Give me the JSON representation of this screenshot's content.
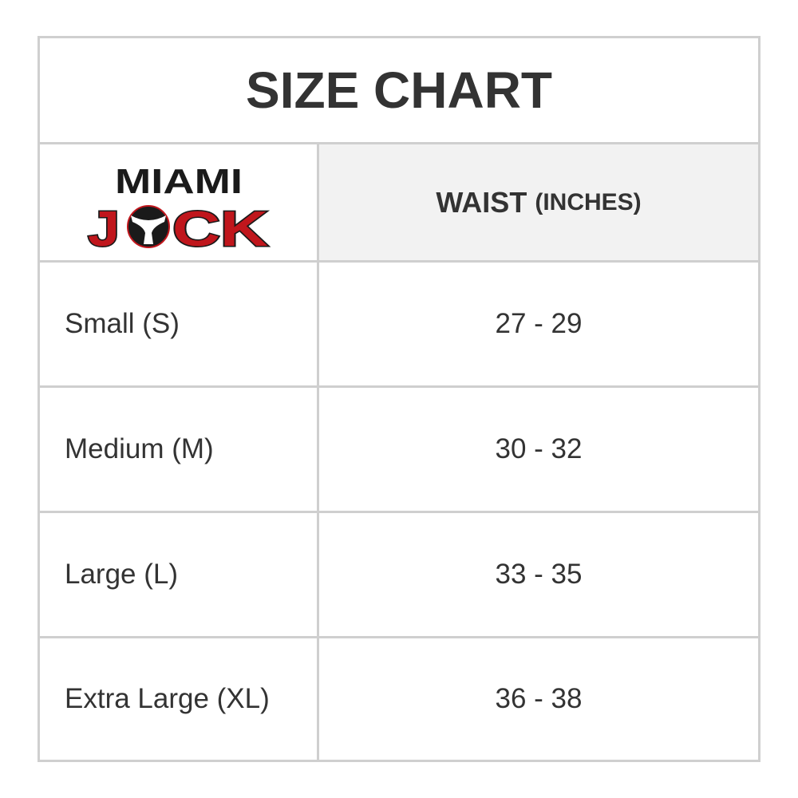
{
  "title": "SIZE CHART",
  "logo": {
    "line1": "MIAMI",
    "line2": "JOCK",
    "colors": {
      "red": "#c0161c",
      "black": "#1a1a1a"
    }
  },
  "header": {
    "col2_main": "WAIST",
    "col2_unit": "(INCHES)"
  },
  "rows": [
    {
      "size": "Small (S)",
      "waist": "27 - 29"
    },
    {
      "size": "Medium (M)",
      "waist": "30 - 32"
    },
    {
      "size": "Large (L)",
      "waist": "33 - 35"
    },
    {
      "size": "Extra Large (XL)",
      "waist": "36 - 38"
    }
  ]
}
